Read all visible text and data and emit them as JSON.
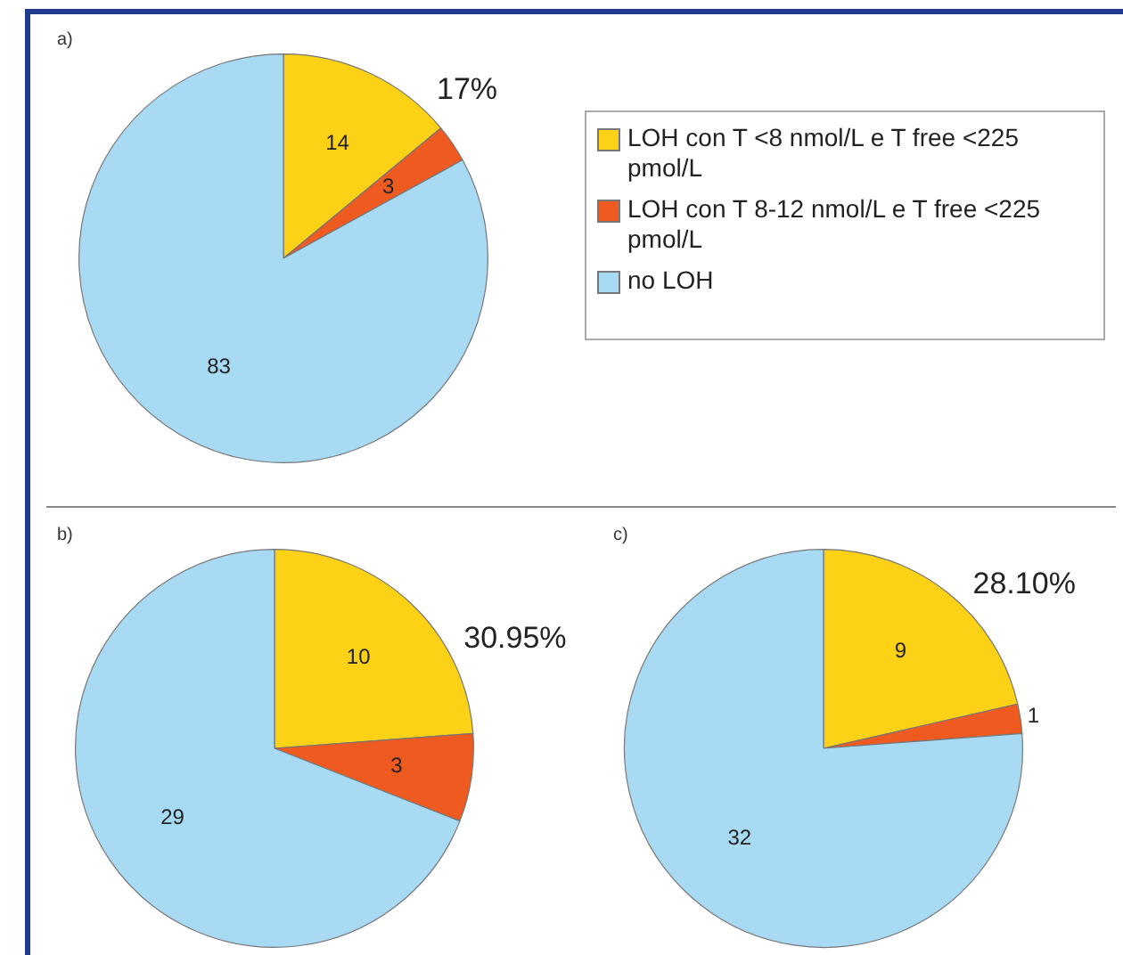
{
  "chart_data": [
    {
      "type": "pie",
      "title": "a)",
      "categories": [
        "LOH con T <8 nmol/L e T free <225 pmol/L",
        "LOH con T 8-12 nmol/L  e T free <225 pmol/L",
        "no LOH"
      ],
      "values": [
        14,
        3,
        83
      ],
      "colors": [
        "#fcd116",
        "#ee5a1f",
        "#a8daf4"
      ],
      "data_labels": true,
      "legend": "right",
      "annotations": [
        "17%"
      ]
    },
    {
      "type": "pie",
      "title": "b)",
      "categories": [
        null,
        null,
        null
      ],
      "values": [
        10,
        3,
        29
      ],
      "colors": [
        "#fcd116",
        "#ee5a1f",
        "#a8daf4"
      ],
      "data_labels": true,
      "annotations": [
        "30.95%"
      ]
    },
    {
      "type": "pie",
      "title": "c)",
      "categories": [
        null,
        null,
        null
      ],
      "values": [
        9,
        1,
        32
      ],
      "colors": [
        "#fcd116",
        "#ee5a1f",
        "#a8daf4"
      ],
      "data_labels": true,
      "annotations": [
        "28.10%"
      ]
    }
  ]
}
